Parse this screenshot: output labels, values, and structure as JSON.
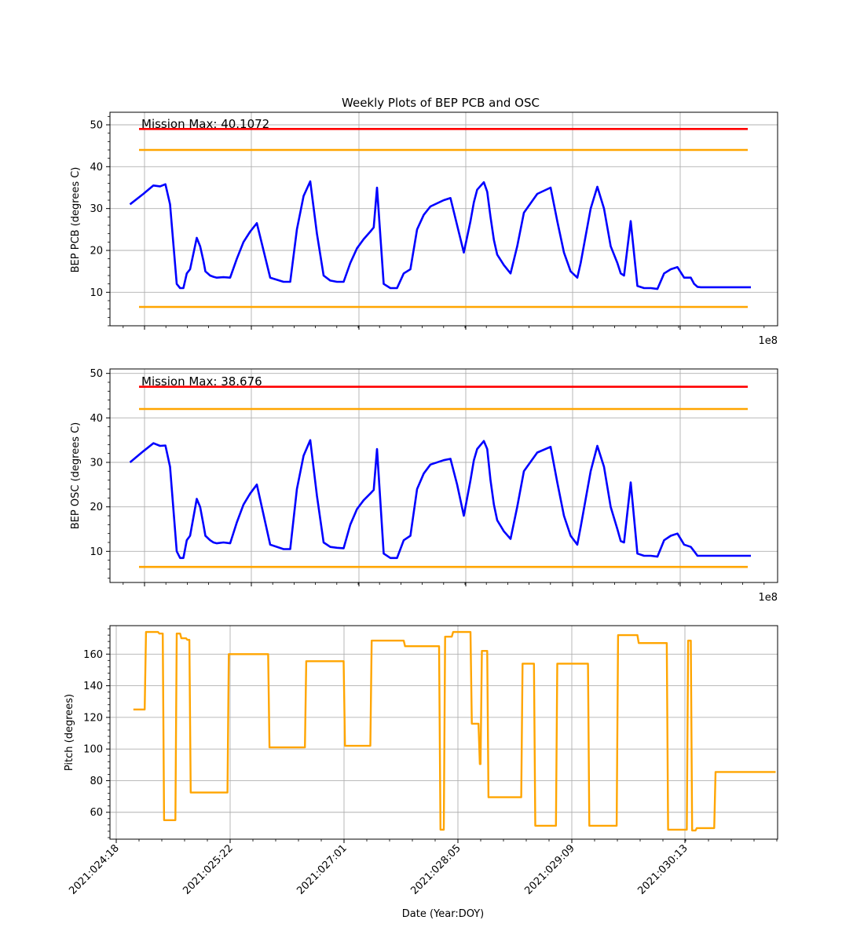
{
  "figure_title": "Weekly Plots of BEP PCB and OSC",
  "colors": {
    "data": "#0000ff",
    "red_limit": "#ff0000",
    "yellow_limit": "#ffa500",
    "grid": "#b0b0b0",
    "pitch": "#ffa500"
  },
  "chart_data": [
    {
      "type": "line",
      "title": "Weekly Plots of BEP PCB and OSC",
      "ylabel": "BEP PCB (degrees C)",
      "xlabel": "",
      "offset_text": "1e8",
      "annotation": "Mission Max: 40.1072",
      "ylim": [
        2,
        53
      ],
      "yticks": [
        10,
        20,
        30,
        40,
        50
      ],
      "limits": {
        "red_high": 49,
        "yellow_high": 44,
        "yellow_low": 6.5
      },
      "x": [
        0.03,
        0.05,
        0.065,
        0.075,
        0.083,
        0.09,
        0.1,
        0.105,
        0.11,
        0.115,
        0.12,
        0.13,
        0.135,
        0.14,
        0.143,
        0.15,
        0.155,
        0.16,
        0.17,
        0.18,
        0.19,
        0.2,
        0.21,
        0.22,
        0.24,
        0.26,
        0.27,
        0.28,
        0.29,
        0.3,
        0.31,
        0.32,
        0.33,
        0.34,
        0.35,
        0.36,
        0.37,
        0.38,
        0.39,
        0.395,
        0.4,
        0.41,
        0.42,
        0.43,
        0.44,
        0.45,
        0.46,
        0.47,
        0.48,
        0.5,
        0.51,
        0.52,
        0.53,
        0.54,
        0.545,
        0.55,
        0.56,
        0.565,
        0.57,
        0.575,
        0.58,
        0.59,
        0.6,
        0.61,
        0.62,
        0.64,
        0.66,
        0.67,
        0.68,
        0.69,
        0.7,
        0.705,
        0.72,
        0.73,
        0.74,
        0.75,
        0.76,
        0.765,
        0.77,
        0.78,
        0.79,
        0.8,
        0.81,
        0.82,
        0.83,
        0.84,
        0.85,
        0.86,
        0.87,
        0.875,
        0.88,
        0.885,
        0.89,
        0.895,
        0.9,
        0.91,
        0.915,
        0.92,
        0.93,
        0.935,
        0.94,
        0.945,
        0.95,
        0.955,
        0.96
      ],
      "values": [
        31,
        33.5,
        35.5,
        35.3,
        35.8,
        31,
        12,
        11,
        11,
        14.5,
        15.5,
        23,
        21,
        17.5,
        15,
        14,
        13.7,
        13.5,
        13.6,
        13.5,
        18,
        22,
        24.5,
        26.5,
        13.5,
        12.5,
        12.5,
        25,
        33,
        36.5,
        24,
        14,
        12.8,
        12.5,
        12.5,
        17,
        20.5,
        22.7,
        24.5,
        25.5,
        35,
        12,
        11,
        11,
        14.5,
        15.5,
        25,
        28.5,
        30.5,
        32,
        32.5,
        26,
        19.5,
        27,
        31.5,
        34.5,
        36.3,
        34,
        28,
        22.5,
        19,
        16.5,
        14.5,
        21,
        29,
        33.5,
        35,
        27,
        19.5,
        15,
        13.5,
        17,
        30,
        35.2,
        30,
        21,
        17,
        14.5,
        14,
        27,
        11.5,
        11,
        11,
        10.8,
        14.5,
        15.5,
        16,
        13.5,
        13.5,
        12,
        11.3,
        11.2,
        11.2,
        11.2,
        11.2,
        11.2,
        11.2,
        11.2,
        11.2,
        11.2,
        11.2,
        11.2,
        11.2,
        11.2,
        11.2
      ]
    },
    {
      "type": "line",
      "ylabel": "BEP OSC (degrees C)",
      "xlabel": "",
      "offset_text": "1e8",
      "annotation": "Mission Max: 38.676",
      "ylim": [
        3,
        51
      ],
      "yticks": [
        10,
        20,
        30,
        40,
        50
      ],
      "limits": {
        "red_high": 47,
        "yellow_high": 42,
        "yellow_low": 6.5
      },
      "x": [
        0.03,
        0.05,
        0.065,
        0.075,
        0.083,
        0.09,
        0.1,
        0.105,
        0.11,
        0.115,
        0.12,
        0.13,
        0.135,
        0.14,
        0.143,
        0.15,
        0.155,
        0.16,
        0.17,
        0.18,
        0.19,
        0.2,
        0.21,
        0.22,
        0.24,
        0.26,
        0.27,
        0.28,
        0.29,
        0.3,
        0.31,
        0.32,
        0.33,
        0.34,
        0.35,
        0.36,
        0.37,
        0.38,
        0.39,
        0.395,
        0.4,
        0.41,
        0.42,
        0.43,
        0.44,
        0.45,
        0.46,
        0.47,
        0.48,
        0.5,
        0.51,
        0.52,
        0.53,
        0.54,
        0.545,
        0.55,
        0.56,
        0.565,
        0.57,
        0.575,
        0.58,
        0.59,
        0.6,
        0.61,
        0.62,
        0.64,
        0.66,
        0.67,
        0.68,
        0.69,
        0.7,
        0.705,
        0.72,
        0.73,
        0.74,
        0.75,
        0.76,
        0.765,
        0.77,
        0.78,
        0.79,
        0.8,
        0.81,
        0.82,
        0.83,
        0.84,
        0.85,
        0.86,
        0.87,
        0.875,
        0.88,
        0.885,
        0.89,
        0.895,
        0.9,
        0.91,
        0.915,
        0.92,
        0.93,
        0.935,
        0.94,
        0.945,
        0.95,
        0.955,
        0.96
      ],
      "values": [
        30,
        32.5,
        34.3,
        33.7,
        33.8,
        29,
        10,
        8.5,
        8.5,
        12.5,
        13.5,
        21.8,
        20,
        16,
        13.5,
        12.5,
        12,
        11.8,
        12,
        11.8,
        16.5,
        20.5,
        23,
        25,
        11.5,
        10.5,
        10.5,
        24,
        31.5,
        35,
        22.5,
        12,
        11,
        10.8,
        10.7,
        16,
        19.5,
        21.5,
        23,
        23.8,
        33,
        9.5,
        8.5,
        8.5,
        12.5,
        13.5,
        24,
        27.5,
        29.5,
        30.5,
        30.8,
        25,
        18,
        26,
        30.5,
        33,
        34.8,
        33,
        26,
        20.5,
        17,
        14.5,
        12.8,
        20,
        28,
        32.2,
        33.5,
        25.5,
        18,
        13.5,
        11.5,
        15.5,
        28,
        33.7,
        29,
        20,
        15,
        12.3,
        12,
        25.5,
        9.5,
        9,
        9,
        8.8,
        12.5,
        13.5,
        14,
        11.5,
        11,
        10,
        9,
        9,
        9,
        9,
        9,
        9,
        9,
        9,
        9,
        9,
        9,
        9,
        9,
        9,
        9
      ]
    },
    {
      "type": "line",
      "ylabel": "Pitch (degrees)",
      "xlabel": "Date (Year:DOY)",
      "ylim": [
        43,
        178
      ],
      "yticks": [
        60,
        80,
        100,
        120,
        140,
        160
      ],
      "xtick_labels": [
        "2021:024:18",
        "2021:025:22",
        "2021:027:01",
        "2021:028:05",
        "2021:029:09",
        "2021:030:13"
      ],
      "x": [
        0.035,
        0.052,
        0.054,
        0.072,
        0.074,
        0.079,
        0.081,
        0.098,
        0.1,
        0.105,
        0.107,
        0.114,
        0.116,
        0.119,
        0.121,
        0.176,
        0.178,
        0.237,
        0.239,
        0.292,
        0.294,
        0.35,
        0.352,
        0.39,
        0.392,
        0.44,
        0.442,
        0.493,
        0.495,
        0.5,
        0.502,
        0.512,
        0.514,
        0.54,
        0.542,
        0.552,
        0.554,
        0.555,
        0.557,
        0.565,
        0.567,
        0.616,
        0.618,
        0.635,
        0.637,
        0.668,
        0.67,
        0.716,
        0.718,
        0.759,
        0.761,
        0.79,
        0.792,
        0.834,
        0.836,
        0.864,
        0.866,
        0.87,
        0.872,
        0.877,
        0.879,
        0.905,
        0.907,
        0.924,
        0.926,
        0.943,
        0.945,
        0.952,
        0.955,
        0.962,
        0.964,
        0.997
      ],
      "values": [
        125,
        125,
        174,
        174,
        173,
        173,
        55,
        55,
        173,
        173,
        170,
        170,
        169,
        169,
        72.5,
        72.5,
        160,
        160,
        101,
        101,
        155.5,
        155.5,
        102,
        102,
        168.5,
        168.5,
        165,
        165,
        49,
        49,
        171,
        171,
        174,
        174,
        116,
        116,
        90.5,
        90.5,
        162,
        162,
        69.5,
        69.5,
        154,
        154,
        51.5,
        51.5,
        154,
        154,
        51.5,
        51.5,
        172,
        172,
        167,
        167,
        49,
        49,
        168.5,
        168.5,
        48.5,
        48.5,
        50,
        50,
        85.5,
        85.5,
        85.5,
        85.5,
        85.5,
        85.5,
        85.5,
        85.5,
        85.5,
        85.5
      ]
    }
  ]
}
